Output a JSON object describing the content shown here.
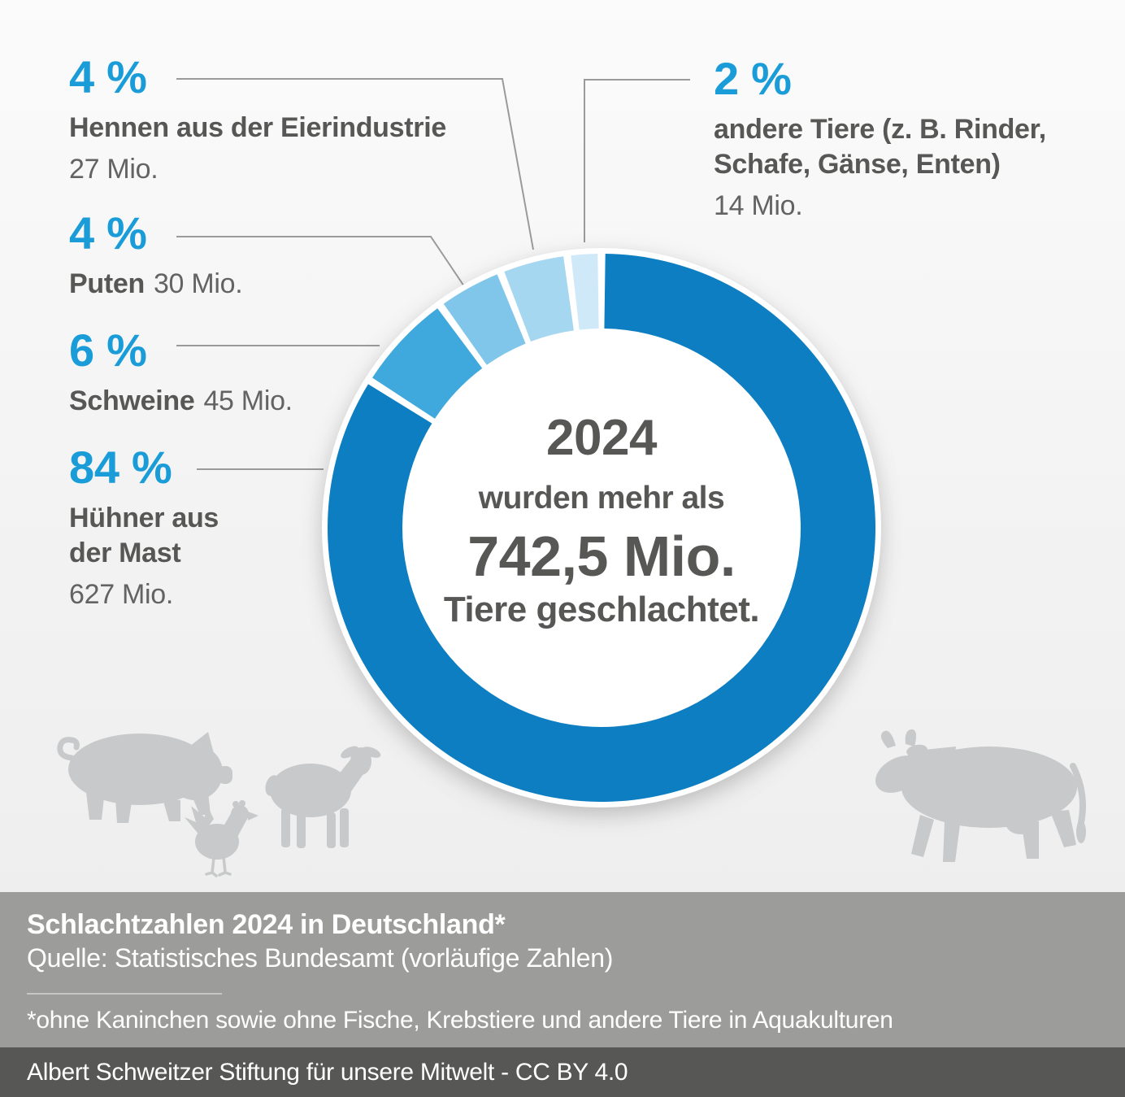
{
  "chart_data": {
    "type": "pie",
    "variant": "donut",
    "title": "Schlachtzahlen 2024 in Deutschland*",
    "center_text": [
      "2024",
      "wurden mehr als",
      "742,5 Mio.",
      "Tiere geschlachtet."
    ],
    "total_label": "742,5 Mio.",
    "unit": "Mio. Tiere",
    "start_angle_deg": 0,
    "direction": "clockwise",
    "legend_position": "callouts",
    "segments": [
      {
        "id": "mast",
        "label": "Hühner aus der Mast",
        "pct": 84,
        "value_mio": 627,
        "color": "#0d7ec1"
      },
      {
        "id": "schweine",
        "label": "Schweine",
        "pct": 6,
        "value_mio": 45,
        "color": "#3fa9dd"
      },
      {
        "id": "puten",
        "label": "Puten",
        "pct": 4,
        "value_mio": 30,
        "color": "#80c6ea"
      },
      {
        "id": "hennen",
        "label": "Hennen aus der Eierindustrie",
        "pct": 4,
        "value_mio": 27,
        "color": "#a6d7f1"
      },
      {
        "id": "andere",
        "label": "andere Tiere (z. B. Rinder, Schafe, Gänse, Enten)",
        "pct": 2,
        "value_mio": 14,
        "color": "#cfe9f8"
      }
    ]
  },
  "callouts": {
    "hennen": {
      "pct": "4 %",
      "name": "Hennen aus der Eierindustrie",
      "count": "27 Mio."
    },
    "puten": {
      "pct": "4 %",
      "name": "Puten",
      "count": "30 Mio."
    },
    "schweine": {
      "pct": "6 %",
      "name": "Schweine",
      "count": "45 Mio."
    },
    "mast": {
      "pct": "84 %",
      "name1": "Hühner aus",
      "name2": "der Mast",
      "count": "627 Mio."
    },
    "andere": {
      "pct": "2 %",
      "name1": "andere Tiere (z. B. Rinder,",
      "name2": "Schafe, Gänse, Enten)",
      "count": "14 Mio."
    }
  },
  "footer": {
    "title": "Schlachtzahlen 2024 in Deutschland*",
    "source": "Quelle: Statistisches Bundesamt (vorläufige Zahlen)",
    "footnote": "*ohne Kaninchen sowie ohne Fische, Krebstiere und andere Tiere in Aquakulturen",
    "credit": "Albert Schweitzer Stiftung für unsere Mitwelt - CC BY 4.0"
  },
  "colors": {
    "accent_blue": "#199cd8",
    "segment_mast": "#0d7ec1",
    "segment_schweine": "#3fa9dd",
    "segment_puten": "#80c6ea",
    "segment_hennen": "#a6d7f1",
    "segment_andere": "#cfe9f8",
    "text_dark": "#575756",
    "text_gray": "#646363",
    "leader_line": "#9a9a9a",
    "footer_band": "#9c9c9b",
    "credit_band": "#575756",
    "silhouette": "#c7c9ca"
  }
}
